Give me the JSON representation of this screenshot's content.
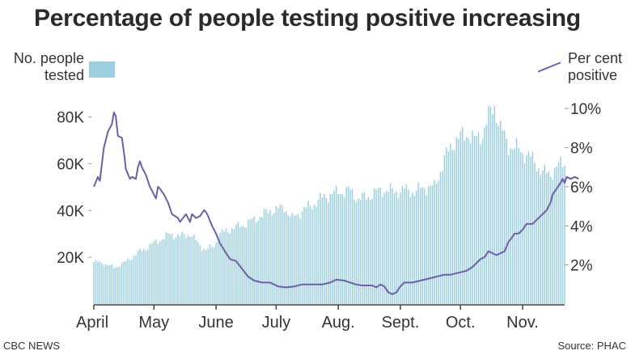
{
  "title": "Percentage of people testing positive increasing",
  "legend": {
    "bars_label": "No. people tested",
    "line_label": "Per cent positive"
  },
  "footer": {
    "source_left": "CBC NEWS",
    "source_right": "Source: PHAC"
  },
  "colors": {
    "bars": "#9bcfe0",
    "line": "#6f5ea5"
  },
  "chart_data": {
    "type": "bar",
    "subtype": "bar+line dual axis",
    "x_unit": "day index from start of April (0 = April 1)",
    "x_ticks": [
      {
        "label": "April",
        "day": 0
      },
      {
        "label": "May",
        "day": 30
      },
      {
        "label": "June",
        "day": 61
      },
      {
        "label": "July",
        "day": 91
      },
      {
        "label": "Aug.",
        "day": 122
      },
      {
        "label": "Sept.",
        "day": 153
      },
      {
        "label": "Oct.",
        "day": 183
      },
      {
        "label": "Nov.",
        "day": 214
      }
    ],
    "xlim": [
      0,
      235
    ],
    "y_left": {
      "label": "No. people tested",
      "ticks": [
        20000,
        40000,
        60000,
        80000
      ],
      "tick_labels": [
        "20K",
        "40K",
        "60K",
        "80K"
      ],
      "ylim": [
        0,
        92000
      ]
    },
    "y_right": {
      "label": "Per cent positive",
      "ticks": [
        2,
        4,
        6,
        8,
        10
      ],
      "tick_labels": [
        "2%",
        "4%",
        "6%",
        "8%",
        "10%"
      ],
      "ylim": [
        0,
        11
      ]
    },
    "series": [
      {
        "name": "No. people tested",
        "kind": "bar",
        "axis": "left",
        "anchors": [
          [
            0,
            18000
          ],
          [
            5,
            17500
          ],
          [
            10,
            15500
          ],
          [
            16,
            18000
          ],
          [
            22,
            22000
          ],
          [
            28,
            25000
          ],
          [
            34,
            28000
          ],
          [
            38,
            30000
          ],
          [
            43,
            29000
          ],
          [
            48,
            30000
          ],
          [
            52,
            26000
          ],
          [
            56,
            23000
          ],
          [
            60,
            25000
          ],
          [
            63,
            30000
          ],
          [
            68,
            32000
          ],
          [
            75,
            34000
          ],
          [
            82,
            37000
          ],
          [
            88,
            40000
          ],
          [
            92,
            40500
          ],
          [
            95,
            41500
          ],
          [
            99,
            36500
          ],
          [
            104,
            40000
          ],
          [
            110,
            43000
          ],
          [
            115,
            46000
          ],
          [
            122,
            48000
          ],
          [
            128,
            48500
          ],
          [
            132,
            45000
          ],
          [
            137,
            46000
          ],
          [
            141,
            48000
          ],
          [
            146,
            49000
          ],
          [
            150,
            48000
          ],
          [
            155,
            49000
          ],
          [
            160,
            48000
          ],
          [
            165,
            50000
          ],
          [
            170,
            50000
          ],
          [
            175,
            62000
          ],
          [
            180,
            70000
          ],
          [
            187,
            73000
          ],
          [
            190,
            70000
          ],
          [
            194,
            73000
          ],
          [
            197,
            80000
          ],
          [
            200,
            85000
          ],
          [
            203,
            75000
          ],
          [
            207,
            68000
          ],
          [
            212,
            66000
          ],
          [
            216,
            64000
          ],
          [
            220,
            61000
          ],
          [
            224,
            56000
          ],
          [
            228,
            56000
          ],
          [
            232,
            59000
          ],
          [
            235,
            61000
          ]
        ]
      },
      {
        "name": "Per cent positive",
        "kind": "line",
        "axis": "right",
        "points": [
          [
            0,
            6.0
          ],
          [
            2,
            6.5
          ],
          [
            3,
            6.3
          ],
          [
            5,
            8.0
          ],
          [
            7,
            8.8
          ],
          [
            9,
            9.2
          ],
          [
            10,
            9.8
          ],
          [
            11,
            9.6
          ],
          [
            12,
            8.6
          ],
          [
            14,
            8.5
          ],
          [
            15,
            7.8
          ],
          [
            16,
            6.9
          ],
          [
            18,
            6.4
          ],
          [
            19,
            6.5
          ],
          [
            21,
            6.4
          ],
          [
            22,
            7.0
          ],
          [
            23,
            7.3
          ],
          [
            24,
            7.0
          ],
          [
            26,
            6.6
          ],
          [
            28,
            6.0
          ],
          [
            30,
            5.6
          ],
          [
            31,
            5.4
          ],
          [
            32,
            6.0
          ],
          [
            33,
            5.9
          ],
          [
            35,
            5.6
          ],
          [
            37,
            5.2
          ],
          [
            39,
            4.6
          ],
          [
            42,
            4.4
          ],
          [
            43,
            4.2
          ],
          [
            46,
            4.6
          ],
          [
            48,
            4.2
          ],
          [
            49,
            4.6
          ],
          [
            51,
            4.4
          ],
          [
            53,
            4.5
          ],
          [
            55,
            4.8
          ],
          [
            56,
            4.7
          ],
          [
            57,
            4.5
          ],
          [
            59,
            4.0
          ],
          [
            61,
            3.6
          ],
          [
            63,
            3.1
          ],
          [
            66,
            2.6
          ],
          [
            68,
            2.3
          ],
          [
            71,
            2.2
          ],
          [
            74,
            1.8
          ],
          [
            77,
            1.4
          ],
          [
            80,
            1.2
          ],
          [
            84,
            1.1
          ],
          [
            88,
            1.1
          ],
          [
            92,
            0.9
          ],
          [
            96,
            0.85
          ],
          [
            100,
            0.9
          ],
          [
            104,
            1.0
          ],
          [
            109,
            1.0
          ],
          [
            114,
            1.0
          ],
          [
            118,
            1.1
          ],
          [
            121,
            1.25
          ],
          [
            125,
            1.2
          ],
          [
            128,
            1.1
          ],
          [
            131,
            1.0
          ],
          [
            134,
            0.95
          ],
          [
            139,
            0.95
          ],
          [
            141,
            0.85
          ],
          [
            143,
            1.0
          ],
          [
            145,
            0.9
          ],
          [
            147,
            0.6
          ],
          [
            149,
            0.5
          ],
          [
            151,
            0.6
          ],
          [
            153,
            0.9
          ],
          [
            155,
            1.1
          ],
          [
            159,
            1.1
          ],
          [
            163,
            1.2
          ],
          [
            167,
            1.3
          ],
          [
            171,
            1.4
          ],
          [
            175,
            1.5
          ],
          [
            178,
            1.5
          ],
          [
            182,
            1.6
          ],
          [
            186,
            1.7
          ],
          [
            189,
            1.9
          ],
          [
            193,
            2.3
          ],
          [
            195,
            2.4
          ],
          [
            197,
            2.7
          ],
          [
            199,
            2.6
          ],
          [
            201,
            2.5
          ],
          [
            203,
            2.6
          ],
          [
            205,
            2.7
          ],
          [
            207,
            3.2
          ],
          [
            208,
            3.3
          ],
          [
            210,
            3.6
          ],
          [
            212,
            3.6
          ],
          [
            214,
            3.8
          ],
          [
            216,
            4.1
          ],
          [
            219,
            4.1
          ],
          [
            222,
            4.4
          ],
          [
            224,
            4.6
          ],
          [
            226,
            4.8
          ],
          [
            228,
            5.2
          ],
          [
            229,
            5.6
          ],
          [
            231,
            5.9
          ],
          [
            233,
            6.2
          ],
          [
            234,
            6.4
          ],
          [
            235,
            6.2
          ],
          [
            236,
            6.5
          ],
          [
            238,
            6.4
          ],
          [
            240,
            6.5
          ],
          [
            242,
            6.4
          ]
        ]
      }
    ]
  }
}
